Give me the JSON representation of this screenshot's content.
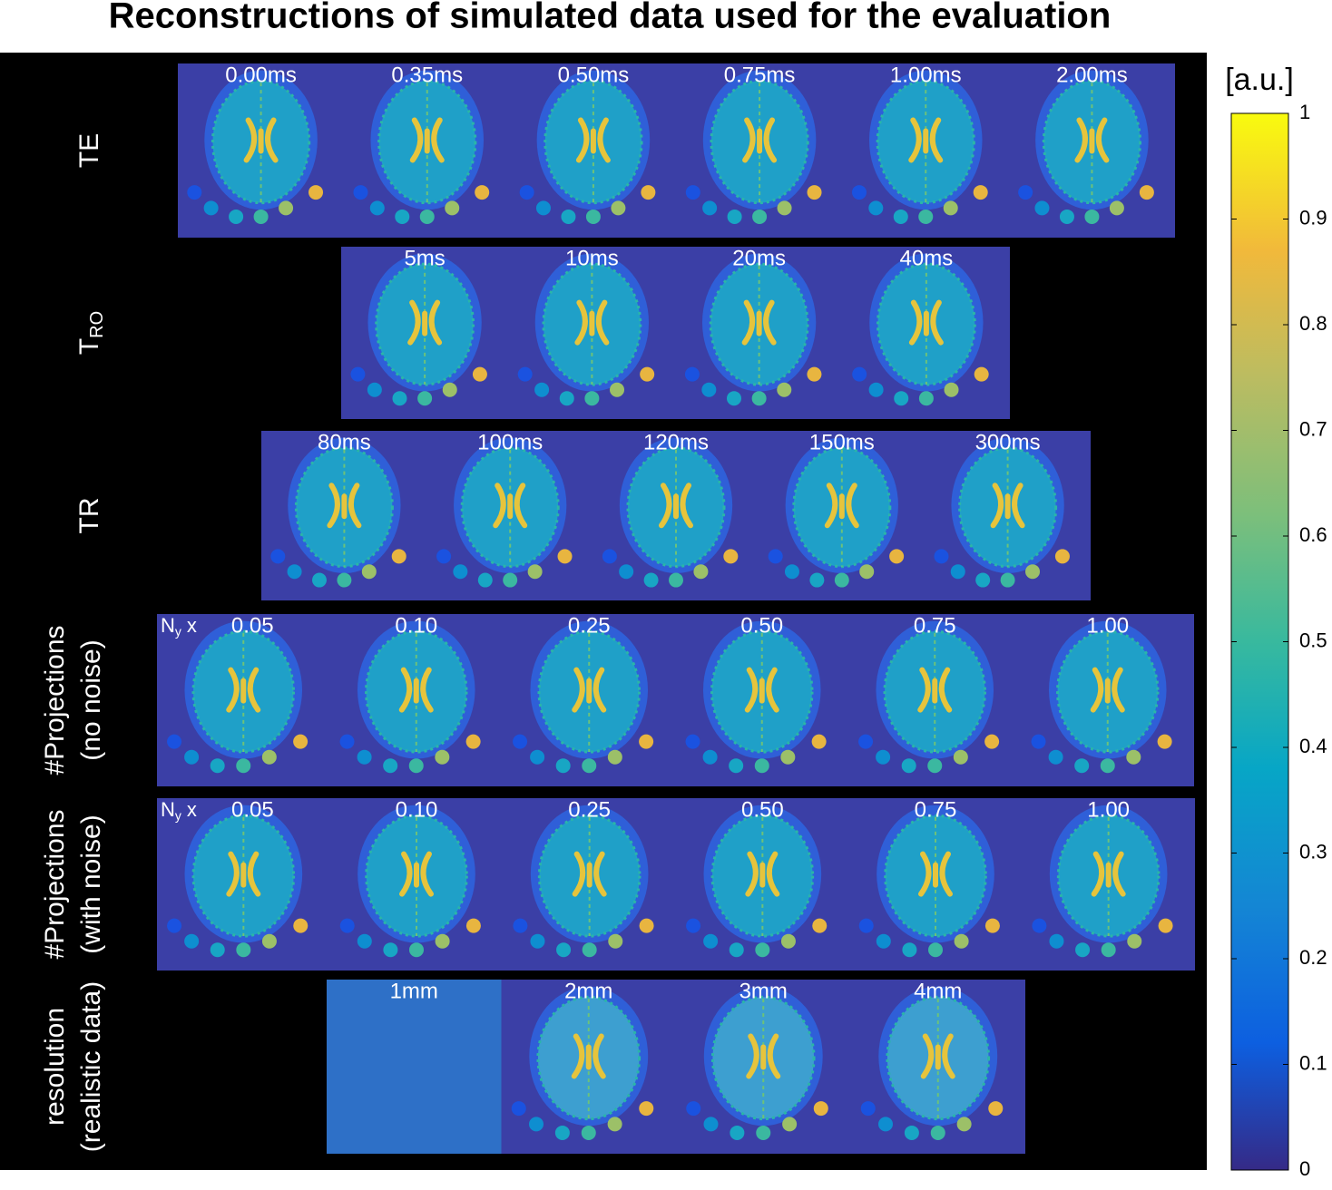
{
  "title": "Reconstructions of simulated data used for the evaluation",
  "rows": [
    {
      "label": [
        "TE"
      ],
      "panels": [
        "0.00ms",
        "0.35ms",
        "0.50ms",
        "0.75ms",
        "1.00ms",
        "2.00ms"
      ]
    },
    {
      "label": [
        {
          "text": "T",
          "sub": "RO"
        }
      ],
      "panels": [
        "5ms",
        "10ms",
        "20ms",
        "40ms"
      ]
    },
    {
      "label": [
        "TR"
      ],
      "panels": [
        "80ms",
        "100ms",
        "120ms",
        "150ms",
        "300ms"
      ]
    },
    {
      "label": [
        "#Projections",
        "(no noise)"
      ],
      "prefix": {
        "text": "N",
        "sub": "y",
        "rest": "x"
      },
      "panels": [
        "0.05",
        "0.10",
        "0.25",
        "0.50",
        "0.75",
        "1.00"
      ]
    },
    {
      "label": [
        "#Projections",
        "(with noise)"
      ],
      "prefix": {
        "text": "N",
        "sub": "y",
        "rest": "x"
      },
      "panels": [
        "0.05",
        "0.10",
        "0.25",
        "0.50",
        "0.75",
        "1.00"
      ]
    },
    {
      "label": [
        "resolution",
        "(realistic data)"
      ],
      "panels": [
        "1mm",
        "2mm",
        "3mm",
        "4mm"
      ]
    }
  ],
  "colorbar": {
    "label": "[a.u.]",
    "lim": [
      0,
      1
    ],
    "ticks": [
      0,
      0.1,
      0.2,
      0.3,
      0.4,
      0.5,
      0.6,
      0.7,
      0.8,
      0.9,
      1
    ]
  }
}
